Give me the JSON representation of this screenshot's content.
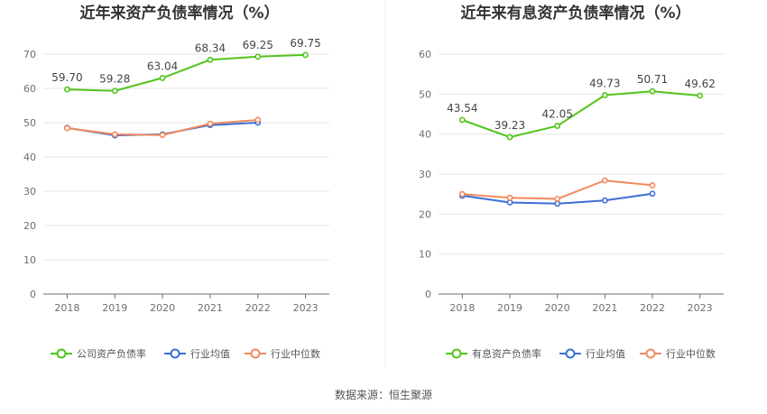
{
  "chart_data": [
    {
      "type": "line",
      "title": "近年来资产负债率情况（%）",
      "categories": [
        "2018",
        "2019",
        "2020",
        "2021",
        "2022",
        "2023"
      ],
      "ylim": [
        0,
        70
      ],
      "yticks": [
        "0",
        "10",
        "20",
        "30",
        "40",
        "50",
        "60",
        "70"
      ],
      "grid": true,
      "legend_position": "bottom",
      "series": [
        {
          "name": "公司资产负债率",
          "color": "#52c41a",
          "values": [
            59.7,
            59.28,
            63.04,
            68.34,
            69.25,
            69.75
          ],
          "labels": [
            "59.70",
            "59.28",
            "63.04",
            "68.34",
            "69.25",
            "69.75"
          ]
        },
        {
          "name": "行业均值",
          "color": "#3d6fd6",
          "values": [
            48.5,
            46.3,
            46.6,
            49.3,
            50.0,
            null
          ]
        },
        {
          "name": "行业中位数",
          "color": "#f08a5d",
          "values": [
            48.4,
            46.6,
            46.4,
            49.7,
            50.8,
            null
          ]
        }
      ]
    },
    {
      "type": "line",
      "title": "近年来有息资产负债率情况（%）",
      "categories": [
        "2018",
        "2019",
        "2020",
        "2021",
        "2022",
        "2023"
      ],
      "ylim": [
        0,
        60
      ],
      "yticks": [
        "0",
        "10",
        "20",
        "30",
        "40",
        "50",
        "60"
      ],
      "grid": true,
      "legend_position": "bottom",
      "series": [
        {
          "name": "有息资产负债率",
          "color": "#52c41a",
          "values": [
            43.54,
            39.23,
            42.05,
            49.73,
            50.71,
            49.62
          ],
          "labels": [
            "43.54",
            "39.23",
            "42.05",
            "49.73",
            "50.71",
            "49.62"
          ]
        },
        {
          "name": "行业均值",
          "color": "#3d6fd6",
          "values": [
            24.6,
            22.9,
            22.6,
            23.4,
            25.1,
            null
          ]
        },
        {
          "name": "行业中位数",
          "color": "#f08a5d",
          "values": [
            25.0,
            24.1,
            23.8,
            28.4,
            27.2,
            null
          ]
        }
      ]
    }
  ],
  "source": "数据来源：恒生聚源"
}
